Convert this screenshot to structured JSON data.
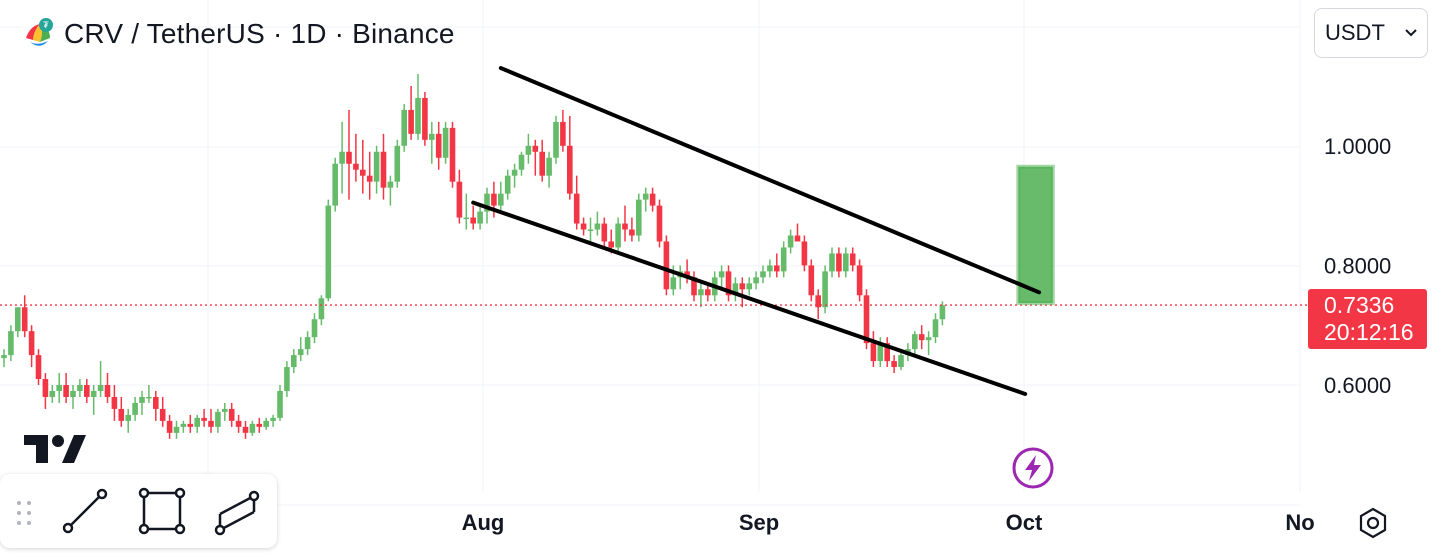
{
  "header": {
    "symbol_title": "CRV / TetherUS · 1D · Binance"
  },
  "currency_select": {
    "value": "USDT"
  },
  "price_scale": {
    "labels": [
      "1.0000",
      "0.8000",
      "0.6000"
    ],
    "last_price": "0.7336",
    "countdown": "20:12:16"
  },
  "time_scale": {
    "labels": [
      "Aug",
      "Sep",
      "Oct",
      "No"
    ]
  },
  "colors": {
    "up": "#66bb6a",
    "down": "#f23645",
    "grid": "#f0f3fa",
    "channel": "#000000",
    "target_box": "#4caf50",
    "bolt": "#9c27b0"
  },
  "icons": [
    "crv-logo-icon",
    "chevron-down-icon",
    "drag-handle-icon",
    "trend-line-icon",
    "rectangle-icon",
    "parallel-channel-icon",
    "tradingview-logo-icon",
    "lightning-icon",
    "settings-icon"
  ],
  "chart_data": {
    "type": "candlestick",
    "title": "CRV / TetherUS · 1D · Binance",
    "y_unit": "USDT",
    "ylim": [
      0.5,
      1.1
    ],
    "y_ticks": [
      0.6,
      0.8,
      1.0
    ],
    "x_ticks": [
      "Aug",
      "Sep",
      "Oct",
      "No"
    ],
    "last_price": 0.7336,
    "series": [
      {
        "name": "CRV/USDT",
        "ohlc": [
          [
            0.645,
            0.66,
            0.63,
            0.65
          ],
          [
            0.65,
            0.7,
            0.64,
            0.69
          ],
          [
            0.69,
            0.73,
            0.68,
            0.73
          ],
          [
            0.73,
            0.75,
            0.68,
            0.69
          ],
          [
            0.69,
            0.7,
            0.63,
            0.65
          ],
          [
            0.65,
            0.66,
            0.6,
            0.61
          ],
          [
            0.61,
            0.62,
            0.56,
            0.58
          ],
          [
            0.58,
            0.6,
            0.57,
            0.59
          ],
          [
            0.59,
            0.62,
            0.57,
            0.6
          ],
          [
            0.6,
            0.62,
            0.57,
            0.58
          ],
          [
            0.58,
            0.6,
            0.56,
            0.59
          ],
          [
            0.59,
            0.61,
            0.58,
            0.6
          ],
          [
            0.6,
            0.61,
            0.57,
            0.58
          ],
          [
            0.58,
            0.6,
            0.55,
            0.59
          ],
          [
            0.59,
            0.64,
            0.58,
            0.6
          ],
          [
            0.6,
            0.62,
            0.57,
            0.58
          ],
          [
            0.58,
            0.6,
            0.54,
            0.56
          ],
          [
            0.56,
            0.58,
            0.53,
            0.54
          ],
          [
            0.54,
            0.56,
            0.52,
            0.55
          ],
          [
            0.55,
            0.58,
            0.54,
            0.57
          ],
          [
            0.57,
            0.59,
            0.55,
            0.58
          ],
          [
            0.58,
            0.6,
            0.57,
            0.58
          ],
          [
            0.58,
            0.59,
            0.54,
            0.56
          ],
          [
            0.56,
            0.58,
            0.53,
            0.54
          ],
          [
            0.54,
            0.55,
            0.51,
            0.52
          ],
          [
            0.52,
            0.54,
            0.51,
            0.53
          ],
          [
            0.53,
            0.54,
            0.52,
            0.535
          ],
          [
            0.535,
            0.55,
            0.52,
            0.53
          ],
          [
            0.53,
            0.55,
            0.52,
            0.545
          ],
          [
            0.545,
            0.56,
            0.53,
            0.54
          ],
          [
            0.54,
            0.56,
            0.52,
            0.53
          ],
          [
            0.53,
            0.56,
            0.52,
            0.555
          ],
          [
            0.555,
            0.57,
            0.54,
            0.56
          ],
          [
            0.56,
            0.57,
            0.53,
            0.54
          ],
          [
            0.54,
            0.55,
            0.52,
            0.53
          ],
          [
            0.53,
            0.54,
            0.51,
            0.52
          ],
          [
            0.52,
            0.54,
            0.515,
            0.535
          ],
          [
            0.535,
            0.545,
            0.52,
            0.53
          ],
          [
            0.53,
            0.545,
            0.525,
            0.54
          ],
          [
            0.54,
            0.55,
            0.53,
            0.545
          ],
          [
            0.545,
            0.6,
            0.54,
            0.59
          ],
          [
            0.59,
            0.64,
            0.58,
            0.63
          ],
          [
            0.63,
            0.66,
            0.62,
            0.65
          ],
          [
            0.65,
            0.68,
            0.64,
            0.66
          ],
          [
            0.66,
            0.69,
            0.65,
            0.68
          ],
          [
            0.68,
            0.72,
            0.67,
            0.71
          ],
          [
            0.71,
            0.75,
            0.7,
            0.745
          ],
          [
            0.745,
            0.91,
            0.74,
            0.9
          ],
          [
            0.9,
            0.98,
            0.89,
            0.97
          ],
          [
            0.97,
            1.04,
            0.92,
            0.99
          ],
          [
            0.99,
            1.06,
            0.91,
            0.97
          ],
          [
            0.97,
            1.02,
            0.94,
            0.96
          ],
          [
            0.96,
            1.01,
            0.92,
            0.95
          ],
          [
            0.95,
            0.99,
            0.91,
            0.94
          ],
          [
            0.94,
            1.0,
            0.92,
            0.99
          ],
          [
            0.99,
            1.02,
            0.91,
            0.93
          ],
          [
            0.93,
            0.95,
            0.9,
            0.94
          ],
          [
            0.94,
            1.01,
            0.93,
            1.0
          ],
          [
            1.0,
            1.07,
            0.99,
            1.06
          ],
          [
            1.06,
            1.1,
            1.01,
            1.02
          ],
          [
            1.02,
            1.12,
            1.01,
            1.08
          ],
          [
            1.08,
            1.09,
            1.0,
            1.01
          ],
          [
            1.01,
            1.04,
            0.97,
            1.02
          ],
          [
            1.02,
            1.04,
            0.96,
            0.98
          ],
          [
            0.98,
            1.04,
            0.97,
            1.03
          ],
          [
            1.03,
            1.04,
            0.93,
            0.94
          ],
          [
            0.94,
            0.96,
            0.87,
            0.88
          ],
          [
            0.88,
            0.92,
            0.86,
            0.88
          ],
          [
            0.88,
            0.9,
            0.86,
            0.87
          ],
          [
            0.87,
            0.9,
            0.86,
            0.89
          ],
          [
            0.89,
            0.93,
            0.87,
            0.92
          ],
          [
            0.92,
            0.94,
            0.88,
            0.9
          ],
          [
            0.9,
            0.94,
            0.89,
            0.92
          ],
          [
            0.92,
            0.96,
            0.91,
            0.95
          ],
          [
            0.95,
            0.97,
            0.93,
            0.96
          ],
          [
            0.96,
            0.99,
            0.95,
            0.985
          ],
          [
            0.985,
            1.02,
            0.97,
            1.0
          ],
          [
            1.0,
            1.01,
            0.95,
            0.99
          ],
          [
            0.99,
            1.01,
            0.94,
            0.95
          ],
          [
            0.95,
            0.99,
            0.93,
            0.98
          ],
          [
            0.98,
            1.05,
            0.97,
            1.04
          ],
          [
            1.04,
            1.06,
            0.99,
            1.0
          ],
          [
            1.0,
            1.05,
            0.91,
            0.92
          ],
          [
            0.92,
            0.95,
            0.86,
            0.87
          ],
          [
            0.87,
            0.88,
            0.85,
            0.86
          ],
          [
            0.86,
            0.88,
            0.84,
            0.86
          ],
          [
            0.86,
            0.89,
            0.85,
            0.87
          ],
          [
            0.87,
            0.88,
            0.83,
            0.84
          ],
          [
            0.84,
            0.86,
            0.82,
            0.83
          ],
          [
            0.83,
            0.88,
            0.82,
            0.87
          ],
          [
            0.87,
            0.9,
            0.84,
            0.86
          ],
          [
            0.86,
            0.88,
            0.84,
            0.85
          ],
          [
            0.85,
            0.92,
            0.84,
            0.91
          ],
          [
            0.91,
            0.93,
            0.89,
            0.92
          ],
          [
            0.92,
            0.93,
            0.89,
            0.9
          ],
          [
            0.9,
            0.91,
            0.83,
            0.84
          ],
          [
            0.84,
            0.85,
            0.75,
            0.76
          ],
          [
            0.76,
            0.8,
            0.75,
            0.78
          ],
          [
            0.78,
            0.8,
            0.76,
            0.79
          ],
          [
            0.79,
            0.81,
            0.77,
            0.78
          ],
          [
            0.78,
            0.79,
            0.74,
            0.75
          ],
          [
            0.75,
            0.77,
            0.73,
            0.76
          ],
          [
            0.76,
            0.77,
            0.74,
            0.75
          ],
          [
            0.75,
            0.79,
            0.74,
            0.78
          ],
          [
            0.78,
            0.8,
            0.76,
            0.79
          ],
          [
            0.79,
            0.8,
            0.74,
            0.75
          ],
          [
            0.75,
            0.78,
            0.74,
            0.77
          ],
          [
            0.77,
            0.78,
            0.73,
            0.76
          ],
          [
            0.76,
            0.78,
            0.75,
            0.77
          ],
          [
            0.77,
            0.79,
            0.76,
            0.78
          ],
          [
            0.78,
            0.8,
            0.77,
            0.79
          ],
          [
            0.79,
            0.81,
            0.78,
            0.8
          ],
          [
            0.8,
            0.82,
            0.78,
            0.79
          ],
          [
            0.79,
            0.84,
            0.78,
            0.83
          ],
          [
            0.83,
            0.86,
            0.82,
            0.85
          ],
          [
            0.85,
            0.87,
            0.84,
            0.84
          ],
          [
            0.84,
            0.85,
            0.79,
            0.8
          ],
          [
            0.8,
            0.81,
            0.74,
            0.75
          ],
          [
            0.75,
            0.76,
            0.71,
            0.73
          ],
          [
            0.73,
            0.8,
            0.72,
            0.79
          ],
          [
            0.79,
            0.83,
            0.78,
            0.82
          ],
          [
            0.82,
            0.83,
            0.78,
            0.79
          ],
          [
            0.79,
            0.83,
            0.78,
            0.82
          ],
          [
            0.82,
            0.83,
            0.79,
            0.8
          ],
          [
            0.8,
            0.81,
            0.74,
            0.75
          ],
          [
            0.75,
            0.76,
            0.66,
            0.67
          ],
          [
            0.67,
            0.69,
            0.63,
            0.64
          ],
          [
            0.64,
            0.68,
            0.63,
            0.67
          ],
          [
            0.67,
            0.68,
            0.63,
            0.64
          ],
          [
            0.64,
            0.65,
            0.62,
            0.63
          ],
          [
            0.63,
            0.66,
            0.625,
            0.65
          ],
          [
            0.65,
            0.67,
            0.64,
            0.66
          ],
          [
            0.66,
            0.69,
            0.65,
            0.685
          ],
          [
            0.685,
            0.7,
            0.66,
            0.675
          ],
          [
            0.675,
            0.69,
            0.65,
            0.68
          ],
          [
            0.68,
            0.72,
            0.67,
            0.71
          ],
          [
            0.71,
            0.74,
            0.7,
            0.7336
          ]
        ]
      }
    ],
    "annotations": {
      "channel_upper": {
        "start_x": "2024-07-20",
        "end_x": "2024-10-06",
        "start_y": 1.13,
        "end_y": 0.755
      },
      "channel_lower": {
        "start_x": "2024-07-16",
        "end_x": "2024-10-04",
        "start_y": 0.905,
        "end_y": 0.585
      },
      "target_box": {
        "start_x": "2024-10-03",
        "end_x": "2024-10-08",
        "y_from": 0.737,
        "y_to": 0.965
      }
    }
  }
}
